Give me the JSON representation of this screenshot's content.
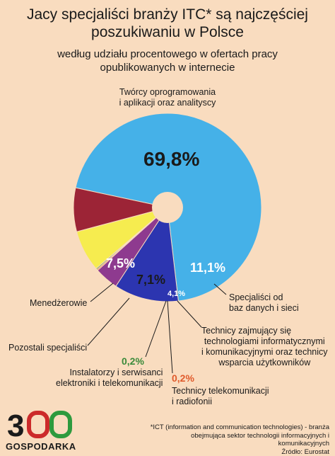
{
  "chart_data": {
    "type": "pie",
    "title": "Jacy specjaliści branży ITC* są najczęściej poszukiwaniu w Polsce",
    "subtitle": "według udziału procentowego w ofertach pracy opublikowanych w internecie",
    "slices": [
      {
        "name": "Twórcy oprogramowania i aplikacji oraz analitycy",
        "value": 69.8,
        "value_label": "69,8%",
        "color": "#45b1e8"
      },
      {
        "name": "Specjaliści od baz danych i sieci",
        "value": 11.1,
        "value_label": "11,1%",
        "color": "#2c35b0"
      },
      {
        "name": "Technicy zajmujący się technologiami informatycznymi i komunikacyjnymi oraz technicy wsparcia użytkowników",
        "value": 4.1,
        "value_label": "4,1%",
        "color": "#8e3a8f"
      },
      {
        "name": "Technicy telekomunikacji i radiofonii",
        "value": 0.2,
        "value_label": "0,2%",
        "color": "#e05a2b"
      },
      {
        "name": "Instalatorzy i serwisanci elektroniki i telekomunikacji",
        "value": 0.2,
        "value_label": "0,2%",
        "color": "#3a8a3a"
      },
      {
        "name": "Pozostali specjaliści",
        "value": 7.1,
        "value_label": "7,1%",
        "color": "#f6ec4f"
      },
      {
        "name": "Menedżerowie",
        "value": 7.5,
        "value_label": "7,5%",
        "color": "#9c2436"
      }
    ]
  },
  "labels": {
    "top_line1": "Twórcy oprogramowania",
    "top_line2": "i aplikacji oraz analityscy",
    "baz_line1": "Specjaliści od",
    "baz_line2": "baz danych i sieci",
    "tech_line1": "Technicy zajmujący się",
    "tech_line2": "technologiami informatycznymi",
    "tech_line3": "i komunikacyjnymi oraz technicy",
    "tech_line4": "wsparcia użytkowników",
    "tele_line1": "Technicy telekomunikacji",
    "tele_line2": "i radiofonii",
    "inst_line1": "Instalatorzy i serwisanci",
    "inst_line2": "elektroniki i telekomunikacji",
    "poz": "Pozostali specjaliści",
    "men": "Menedżerowie"
  },
  "footnote": {
    "line1": "*ICT (information and communication technologies) - branża",
    "line2": "obejmująca sektor technologii informacyjnych i komunikacyjnych",
    "line3": "Źródło: Eurostat"
  },
  "logo": {
    "number": "300",
    "name": "GOSPODARKA"
  }
}
